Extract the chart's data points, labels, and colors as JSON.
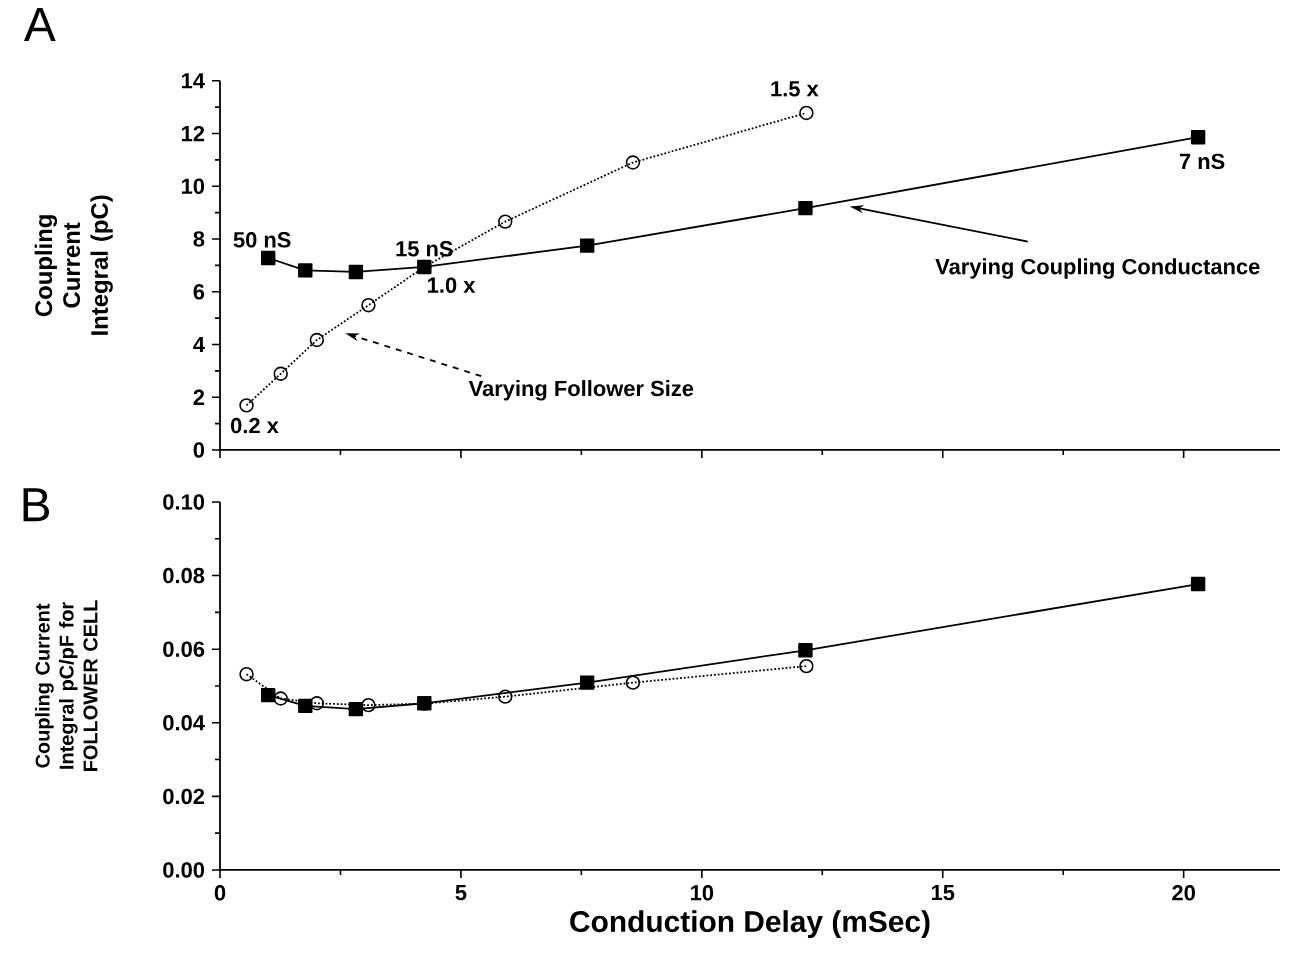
{
  "chart_data": [
    {
      "type": "line",
      "title": "A",
      "ylabel": "Coupling Current Integral (pC)",
      "xlim": [
        0,
        22
      ],
      "xticks": [
        0,
        5,
        10,
        15,
        20
      ],
      "ylim": [
        0,
        14
      ],
      "yticks": [
        0,
        2,
        4,
        6,
        8,
        10,
        12,
        14
      ],
      "tick_labels": "y",
      "series": [
        {
          "x": [
            1.0,
            1.77,
            2.82,
            4.24,
            7.62,
            12.15,
            20.3
          ],
          "values": [
            7.28,
            6.81,
            6.75,
            6.94,
            7.75,
            9.17,
            11.86
          ],
          "color": "#000000",
          "marker": "square",
          "line_style": "solid"
        },
        {
          "x": [
            0.55,
            1.26,
            2.01,
            3.08,
            4.24,
            5.92,
            8.57,
            12.17
          ],
          "values": [
            1.69,
            2.89,
            4.17,
            5.49,
            6.94,
            8.66,
            10.9,
            12.78
          ],
          "color": "#000000",
          "marker": "circle",
          "line_style": "dotted"
        }
      ],
      "annotations": [
        {
          "text": "50 nS",
          "x": 1.0,
          "y": 7.28
        },
        {
          "text": "15 nS",
          "x": 4.24,
          "y": 6.94
        },
        {
          "text": "7 nS",
          "x": 20.3,
          "y": 11.86
        },
        {
          "text": "1.5 x",
          "x": 12.17,
          "y": 12.78
        },
        {
          "text": "1.0 x",
          "x": 4.24,
          "y": 6.94
        },
        {
          "text": "0.2 x",
          "x": 0.55,
          "y": 1.69
        },
        {
          "text": "Varying Coupling Conductance",
          "x": 13.07,
          "y": 9.23
        },
        {
          "text": "Varying Follower Size",
          "x": 2.6,
          "y": 4.43
        }
      ]
    },
    {
      "type": "line",
      "title": "B",
      "ylabel": "Coupling Current Integral pC/pF for FOLLOWER CELL",
      "xlabel": "Conduction Delay (mSec)",
      "xlim": [
        0,
        22
      ],
      "xticks": [
        0,
        5,
        10,
        15,
        20
      ],
      "ylim": [
        0,
        0.1
      ],
      "yticks": [
        {
          "value": 0,
          "label": "0.00"
        },
        {
          "value": 0.02,
          "label": "0.02"
        },
        {
          "value": 0.04,
          "label": "0.04"
        },
        {
          "value": 0.06,
          "label": "0.06"
        },
        {
          "value": 0.08,
          "label": "0.08"
        },
        {
          "value": 0.1,
          "label": "0.10"
        }
      ],
      "series": [
        {
          "x": [
            1.0,
            1.77,
            2.82,
            4.24,
            7.62,
            12.15,
            20.3
          ],
          "values": [
            0.0475,
            0.0446,
            0.0437,
            0.0453,
            0.0509,
            0.0597,
            0.0777
          ],
          "color": "#000000",
          "marker": "square",
          "line_style": "solid"
        },
        {
          "x": [
            0.55,
            1.26,
            2.01,
            3.08,
            4.24,
            5.92,
            8.57,
            12.17
          ],
          "values": [
            0.0532,
            0.0466,
            0.0453,
            0.0448,
            0.0452,
            0.0471,
            0.0509,
            0.0554
          ],
          "color": "#000000",
          "marker": "circle",
          "line_style": "dotted"
        }
      ]
    }
  ]
}
